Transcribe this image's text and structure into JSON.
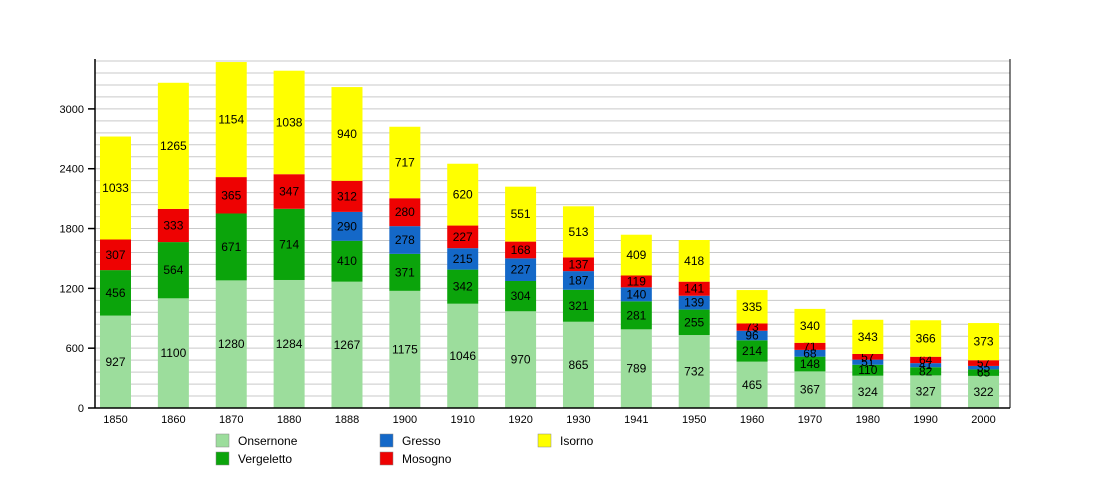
{
  "chart_data": {
    "type": "bar",
    "stacked": true,
    "title": "",
    "xlabel": "",
    "ylabel": "",
    "categories": [
      "1850",
      "1860",
      "1870",
      "1880",
      "1888",
      "1900",
      "1910",
      "1920",
      "1930",
      "1941",
      "1950",
      "1960",
      "1970",
      "1980",
      "1990",
      "2000"
    ],
    "series": [
      {
        "name": "Onsernone",
        "color": "#9CDD9C",
        "values": [
          927,
          1100,
          1280,
          1284,
          1267,
          1175,
          1046,
          970,
          865,
          789,
          732,
          465,
          367,
          324,
          327,
          322
        ]
      },
      {
        "name": "Vergeletto",
        "color": "#0BA40B",
        "values": [
          456,
          564,
          671,
          714,
          410,
          371,
          342,
          304,
          321,
          281,
          255,
          214,
          148,
          110,
          82,
          65
        ]
      },
      {
        "name": "Gresso",
        "color": "#1468C8",
        "values": [
          null,
          null,
          null,
          null,
          290,
          278,
          215,
          227,
          187,
          140,
          139,
          96,
          68,
          51,
          41,
          35
        ]
      },
      {
        "name": "Mosogno",
        "color": "#EE0202",
        "values": [
          307,
          333,
          365,
          347,
          312,
          280,
          227,
          168,
          137,
          119,
          141,
          73,
          71,
          57,
          64,
          57
        ]
      },
      {
        "name": "Isorno",
        "color": "#FFFF00",
        "values": [
          1033,
          1265,
          1154,
          1038,
          940,
          717,
          620,
          551,
          513,
          409,
          418,
          335,
          340,
          343,
          366,
          373
        ]
      }
    ],
    "y_ticks": [
      0,
      600,
      1200,
      1800,
      2400,
      3000
    ],
    "minor_grid_step": 120,
    "grid_top_value": 3480,
    "ylim": [
      0,
      3480
    ],
    "grid": true,
    "grid_color": "#C9C9C9",
    "axis_color": "#000000",
    "label_color": "#000000",
    "legend_position": "bottom",
    "legend_columns": [
      [
        "Onsernone",
        "Vergeletto"
      ],
      [
        "Gresso",
        "Mosogno"
      ],
      [
        "Isorno"
      ]
    ]
  }
}
